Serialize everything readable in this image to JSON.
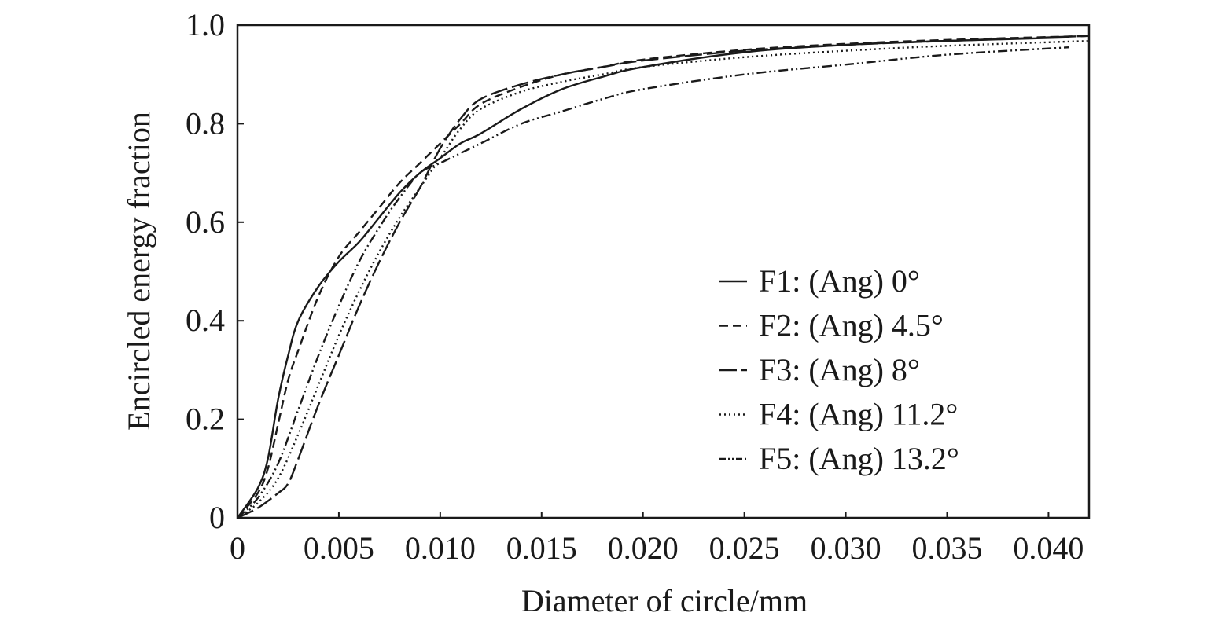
{
  "chart_data": {
    "type": "line",
    "title": "",
    "xlabel": "Diameter of circle/mm",
    "ylabel": "Encircled energy fraction",
    "xlim": [
      0,
      0.042
    ],
    "ylim": [
      0,
      1.0
    ],
    "grid": false,
    "legend_position": "center-right",
    "x_ticks": [
      {
        "value": 0,
        "label": "0"
      },
      {
        "value": 0.005,
        "label": "0.005"
      },
      {
        "value": 0.01,
        "label": "0.010"
      },
      {
        "value": 0.015,
        "label": "0.015"
      },
      {
        "value": 0.02,
        "label": "0.020"
      },
      {
        "value": 0.025,
        "label": "0.025"
      },
      {
        "value": 0.03,
        "label": "0.030"
      },
      {
        "value": 0.035,
        "label": "0.035"
      },
      {
        "value": 0.04,
        "label": "0.040"
      }
    ],
    "y_ticks": [
      {
        "value": 0,
        "label": "0"
      },
      {
        "value": 0.2,
        "label": "0.2"
      },
      {
        "value": 0.4,
        "label": "0.4"
      },
      {
        "value": 0.6,
        "label": "0.6"
      },
      {
        "value": 0.8,
        "label": "0.8"
      },
      {
        "value": 1.0,
        "label": "1.0"
      }
    ],
    "series": [
      {
        "name": "F1: (Ang) 0°",
        "dash": "solid",
        "x": [
          0,
          0.001,
          0.0015,
          0.002,
          0.0025,
          0.003,
          0.004,
          0.005,
          0.006,
          0.007,
          0.008,
          0.009,
          0.01,
          0.011,
          0.012,
          0.014,
          0.016,
          0.018,
          0.02,
          0.025,
          0.03,
          0.035,
          0.041
        ],
        "y": [
          0,
          0.06,
          0.12,
          0.24,
          0.33,
          0.4,
          0.47,
          0.52,
          0.56,
          0.61,
          0.66,
          0.7,
          0.73,
          0.76,
          0.78,
          0.83,
          0.87,
          0.895,
          0.915,
          0.945,
          0.96,
          0.968,
          0.975
        ]
      },
      {
        "name": "F2: (Ang) 4.5°",
        "dash": "dashed",
        "x": [
          0,
          0.001,
          0.0015,
          0.002,
          0.0025,
          0.003,
          0.004,
          0.005,
          0.006,
          0.007,
          0.008,
          0.009,
          0.01,
          0.011,
          0.012,
          0.014,
          0.016,
          0.018,
          0.02,
          0.025,
          0.03,
          0.035,
          0.042
        ],
        "y": [
          0,
          0.05,
          0.1,
          0.19,
          0.28,
          0.34,
          0.45,
          0.53,
          0.58,
          0.63,
          0.68,
          0.72,
          0.76,
          0.8,
          0.84,
          0.875,
          0.9,
          0.915,
          0.93,
          0.95,
          0.962,
          0.97,
          0.978
        ]
      },
      {
        "name": "F3: (Ang) 8°",
        "dash": "longdash",
        "x": [
          0,
          0.001,
          0.002,
          0.0025,
          0.003,
          0.004,
          0.005,
          0.006,
          0.007,
          0.008,
          0.009,
          0.01,
          0.011,
          0.012,
          0.014,
          0.016,
          0.018,
          0.02,
          0.025,
          0.03,
          0.035,
          0.042
        ],
        "y": [
          0,
          0.02,
          0.05,
          0.07,
          0.12,
          0.23,
          0.33,
          0.43,
          0.52,
          0.6,
          0.67,
          0.75,
          0.81,
          0.85,
          0.88,
          0.9,
          0.915,
          0.928,
          0.948,
          0.96,
          0.968,
          0.978
        ]
      },
      {
        "name": "F4: (Ang) 11.2°",
        "dash": "dotted",
        "x": [
          0,
          0.001,
          0.002,
          0.003,
          0.004,
          0.005,
          0.006,
          0.007,
          0.008,
          0.009,
          0.01,
          0.011,
          0.012,
          0.014,
          0.016,
          0.018,
          0.02,
          0.025,
          0.03,
          0.035,
          0.042
        ],
        "y": [
          0,
          0.03,
          0.08,
          0.17,
          0.27,
          0.37,
          0.46,
          0.54,
          0.61,
          0.67,
          0.73,
          0.79,
          0.83,
          0.865,
          0.885,
          0.9,
          0.915,
          0.935,
          0.948,
          0.958,
          0.968
        ]
      },
      {
        "name": "F5: (Ang) 13.2°",
        "dash": "dashdotdot",
        "x": [
          0,
          0.001,
          0.002,
          0.003,
          0.004,
          0.005,
          0.006,
          0.007,
          0.008,
          0.009,
          0.01,
          0.012,
          0.014,
          0.016,
          0.018,
          0.02,
          0.025,
          0.03,
          0.035,
          0.041
        ],
        "y": [
          0,
          0.04,
          0.11,
          0.22,
          0.33,
          0.43,
          0.52,
          0.59,
          0.65,
          0.7,
          0.72,
          0.76,
          0.8,
          0.825,
          0.85,
          0.87,
          0.9,
          0.92,
          0.94,
          0.955
        ]
      }
    ]
  }
}
